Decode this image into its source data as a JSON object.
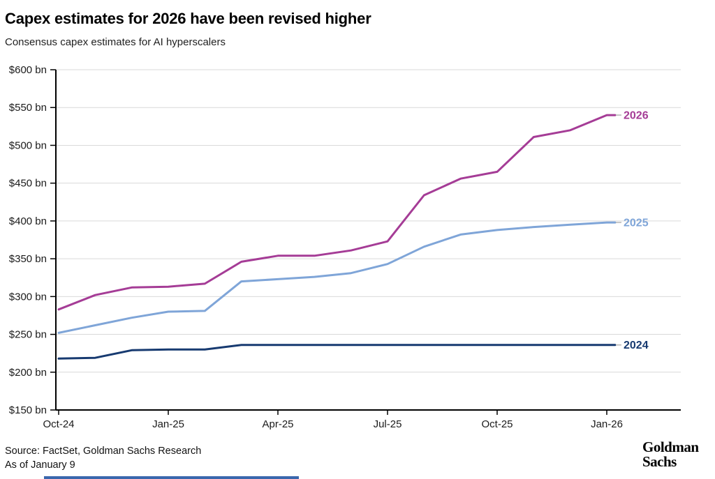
{
  "header": {
    "title": "Capex estimates for 2026 have been revised higher",
    "subtitle": "Consensus capex estimates for AI hyperscalers"
  },
  "chart_data": {
    "type": "line",
    "title": "Capex estimates for 2026 have been revised higher",
    "subtitle": "Consensus capex estimates for AI hyperscalers",
    "unit": "$ bn",
    "x": [
      "Oct-24",
      "Nov-24",
      "Dec-24",
      "Jan-25",
      "Feb-25",
      "Mar-25",
      "Apr-25",
      "May-25",
      "Jun-25",
      "Jul-25",
      "Aug-25",
      "Sep-25",
      "Oct-25",
      "Nov-25",
      "Dec-25",
      "Jan-26"
    ],
    "x_tick_labels": [
      "Oct-24",
      "Jan-25",
      "Apr-25",
      "Jul-25",
      "Oct-25",
      "Jan-26"
    ],
    "x_tick_indices": [
      0,
      3,
      6,
      9,
      12,
      15
    ],
    "series": [
      {
        "name": "2026",
        "color": "#a53c96",
        "values": [
          283,
          302,
          312,
          313,
          317,
          346,
          354,
          354,
          361,
          373,
          434,
          456,
          465,
          511,
          520,
          540
        ]
      },
      {
        "name": "2025",
        "color": "#7fa5d8",
        "values": [
          252,
          262,
          272,
          280,
          281,
          320,
          323,
          326,
          331,
          343,
          366,
          382,
          388,
          392,
          395,
          398
        ]
      },
      {
        "name": "2024",
        "color": "#173a70",
        "values": [
          218,
          219,
          229,
          230,
          230,
          236,
          236,
          236,
          236,
          236,
          236,
          236,
          236,
          236,
          236,
          236
        ]
      }
    ],
    "ylim": [
      150,
      600
    ],
    "y_ticks": [
      600,
      550,
      500,
      450,
      400,
      350,
      300,
      250,
      200,
      150
    ],
    "y_tick_labels": [
      "$600 bn",
      "$550 bn",
      "$500 bn",
      "$450 bn",
      "$400 bn",
      "$350 bn",
      "$300 bn",
      "$250 bn",
      "$200 bn",
      "$150 bn"
    ],
    "grid": true,
    "legend_position": "line-end-labels"
  },
  "footer": {
    "source": "Source: FactSet, Goldman Sachs Research",
    "as_of": "As of January 9"
  },
  "logo": {
    "line1": "Goldman",
    "line2": "Sachs"
  },
  "colors": {
    "grid": "#d9d9d9",
    "axis": "#000000",
    "tick_text": "#1a1a1a",
    "accent_bar": "#3a67ad"
  }
}
